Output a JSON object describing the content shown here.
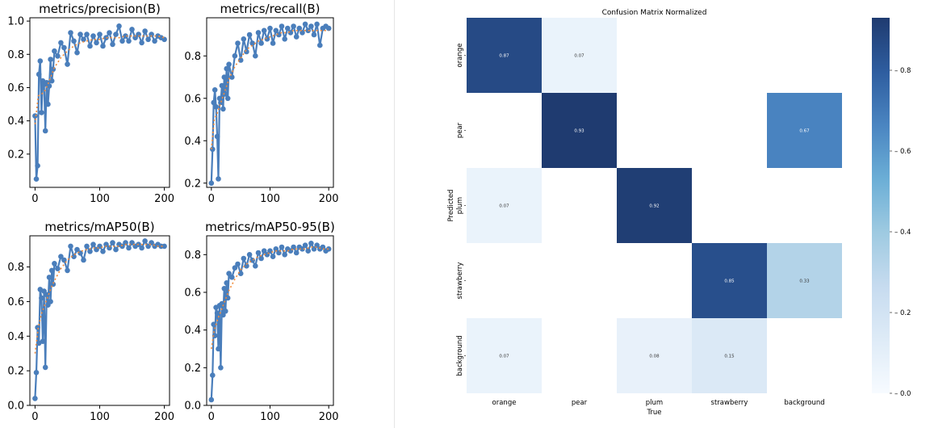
{
  "chart_data": [
    {
      "type": "line",
      "title": "metrics/precision(B)",
      "xlabel": "",
      "ylabel": "",
      "xlim": [
        -8,
        208
      ],
      "ylim": [
        0.0,
        1.02
      ],
      "x_ticks": [
        0,
        100,
        200
      ],
      "y_ticks": [
        0.2,
        0.4,
        0.6,
        0.8,
        1.0
      ],
      "y_tick_labels": [
        "0.2",
        "0.4",
        "0.6",
        "0.8",
        "1.0"
      ],
      "grid": false,
      "series": [
        {
          "role": "raw",
          "color": "#4a7ebb",
          "x": [
            0,
            2,
            4,
            6,
            8,
            10,
            12,
            14,
            16,
            18,
            20,
            22,
            24,
            26,
            28,
            30,
            35,
            40,
            45,
            50,
            55,
            60,
            65,
            70,
            75,
            80,
            85,
            90,
            95,
            100,
            105,
            110,
            115,
            120,
            125,
            130,
            135,
            140,
            145,
            150,
            155,
            160,
            165,
            170,
            175,
            180,
            185,
            190,
            195,
            200
          ],
          "y": [
            0.43,
            0.05,
            0.13,
            0.68,
            0.76,
            0.45,
            0.64,
            0.62,
            0.34,
            0.63,
            0.5,
            0.61,
            0.77,
            0.64,
            0.71,
            0.82,
            0.79,
            0.87,
            0.84,
            0.74,
            0.93,
            0.88,
            0.81,
            0.92,
            0.89,
            0.92,
            0.85,
            0.91,
            0.87,
            0.92,
            0.85,
            0.9,
            0.93,
            0.86,
            0.92,
            0.97,
            0.88,
            0.91,
            0.88,
            0.95,
            0.9,
            0.92,
            0.87,
            0.94,
            0.89,
            0.92,
            0.88,
            0.91,
            0.9,
            0.89
          ]
        },
        {
          "role": "smooth",
          "color": "#f08a3a",
          "x": [
            0,
            5,
            10,
            15,
            20,
            25,
            30,
            40,
            50,
            60,
            70,
            80,
            90,
            100,
            110,
            120,
            130,
            140,
            150,
            160,
            170,
            180,
            190,
            200
          ],
          "y": [
            0.38,
            0.55,
            0.56,
            0.58,
            0.62,
            0.67,
            0.72,
            0.78,
            0.82,
            0.85,
            0.87,
            0.88,
            0.89,
            0.89,
            0.9,
            0.9,
            0.9,
            0.91,
            0.91,
            0.91,
            0.91,
            0.91,
            0.91,
            0.9
          ]
        }
      ]
    },
    {
      "type": "line",
      "title": "metrics/recall(B)",
      "xlabel": "",
      "ylabel": "",
      "xlim": [
        -8,
        208
      ],
      "ylim": [
        0.18,
        0.98
      ],
      "x_ticks": [
        0,
        100,
        200
      ],
      "y_ticks": [
        0.2,
        0.4,
        0.6,
        0.8
      ],
      "y_tick_labels": [
        "0.2",
        "0.4",
        "0.6",
        "0.8"
      ],
      "grid": false,
      "series": [
        {
          "role": "raw",
          "color": "#4a7ebb",
          "x": [
            0,
            2,
            4,
            6,
            8,
            10,
            12,
            14,
            16,
            18,
            20,
            22,
            24,
            26,
            28,
            30,
            35,
            40,
            45,
            50,
            55,
            60,
            65,
            70,
            75,
            80,
            85,
            90,
            95,
            100,
            105,
            110,
            115,
            120,
            125,
            130,
            135,
            140,
            145,
            150,
            155,
            160,
            165,
            170,
            175,
            180,
            185,
            190,
            195,
            200
          ],
          "y": [
            0.2,
            0.36,
            0.58,
            0.64,
            0.56,
            0.42,
            0.22,
            0.6,
            0.58,
            0.66,
            0.55,
            0.7,
            0.62,
            0.74,
            0.6,
            0.76,
            0.7,
            0.8,
            0.86,
            0.78,
            0.88,
            0.82,
            0.9,
            0.86,
            0.8,
            0.91,
            0.86,
            0.92,
            0.88,
            0.93,
            0.86,
            0.92,
            0.9,
            0.94,
            0.88,
            0.93,
            0.91,
            0.94,
            0.89,
            0.93,
            0.91,
            0.95,
            0.92,
            0.94,
            0.9,
            0.95,
            0.85,
            0.93,
            0.94,
            0.93
          ]
        },
        {
          "role": "smooth",
          "color": "#f08a3a",
          "x": [
            0,
            5,
            10,
            15,
            20,
            25,
            30,
            40,
            50,
            60,
            70,
            80,
            90,
            100,
            110,
            120,
            130,
            140,
            150,
            160,
            170,
            180,
            190,
            200
          ],
          "y": [
            0.36,
            0.5,
            0.53,
            0.57,
            0.61,
            0.65,
            0.69,
            0.75,
            0.79,
            0.83,
            0.85,
            0.87,
            0.88,
            0.89,
            0.9,
            0.91,
            0.91,
            0.92,
            0.92,
            0.92,
            0.92,
            0.92,
            0.92,
            0.92
          ]
        }
      ]
    },
    {
      "type": "line",
      "title": "metrics/mAP50(B)",
      "xlabel": "",
      "ylabel": "",
      "xlim": [
        -8,
        208
      ],
      "ylim": [
        0.0,
        0.98
      ],
      "x_ticks": [
        0,
        100,
        200
      ],
      "y_ticks": [
        0.0,
        0.2,
        0.4,
        0.6,
        0.8
      ],
      "y_tick_labels": [
        "0.0",
        "0.2",
        "0.4",
        "0.6",
        "0.8"
      ],
      "grid": false,
      "series": [
        {
          "role": "raw",
          "color": "#4a7ebb",
          "x": [
            0,
            2,
            4,
            6,
            8,
            10,
            12,
            14,
            16,
            18,
            20,
            22,
            24,
            26,
            28,
            30,
            35,
            40,
            45,
            50,
            55,
            60,
            65,
            70,
            75,
            80,
            85,
            90,
            95,
            100,
            105,
            110,
            115,
            120,
            125,
            130,
            135,
            140,
            145,
            150,
            155,
            160,
            165,
            170,
            175,
            180,
            185,
            190,
            195,
            200
          ],
          "y": [
            0.04,
            0.19,
            0.45,
            0.36,
            0.67,
            0.62,
            0.37,
            0.66,
            0.22,
            0.64,
            0.58,
            0.74,
            0.6,
            0.78,
            0.7,
            0.82,
            0.79,
            0.86,
            0.84,
            0.78,
            0.92,
            0.86,
            0.9,
            0.88,
            0.84,
            0.92,
            0.89,
            0.93,
            0.9,
            0.92,
            0.89,
            0.93,
            0.91,
            0.94,
            0.9,
            0.93,
            0.92,
            0.94,
            0.91,
            0.94,
            0.92,
            0.93,
            0.91,
            0.95,
            0.92,
            0.94,
            0.92,
            0.93,
            0.92,
            0.92
          ]
        },
        {
          "role": "smooth",
          "color": "#f08a3a",
          "x": [
            0,
            5,
            10,
            15,
            20,
            25,
            30,
            40,
            50,
            60,
            70,
            80,
            90,
            100,
            110,
            120,
            130,
            140,
            150,
            160,
            170,
            180,
            190,
            200
          ],
          "y": [
            0.3,
            0.45,
            0.53,
            0.58,
            0.63,
            0.68,
            0.72,
            0.79,
            0.84,
            0.87,
            0.89,
            0.9,
            0.91,
            0.91,
            0.92,
            0.92,
            0.92,
            0.93,
            0.93,
            0.93,
            0.93,
            0.93,
            0.92,
            0.92
          ]
        }
      ]
    },
    {
      "type": "line",
      "title": "metrics/mAP50-95(B)",
      "xlabel": "",
      "ylabel": "",
      "xlim": [
        -8,
        208
      ],
      "ylim": [
        0.0,
        0.9
      ],
      "x_ticks": [
        0,
        100,
        200
      ],
      "y_ticks": [
        0.0,
        0.2,
        0.4,
        0.6,
        0.8
      ],
      "y_tick_labels": [
        "0.0",
        "0.2",
        "0.4",
        "0.6",
        "0.8"
      ],
      "grid": false,
      "series": [
        {
          "role": "raw",
          "color": "#4a7ebb",
          "x": [
            0,
            2,
            4,
            6,
            8,
            10,
            12,
            14,
            16,
            18,
            20,
            22,
            24,
            26,
            28,
            30,
            35,
            40,
            45,
            50,
            55,
            60,
            65,
            70,
            75,
            80,
            85,
            90,
            95,
            100,
            105,
            110,
            115,
            120,
            125,
            130,
            135,
            140,
            145,
            150,
            155,
            160,
            165,
            170,
            175,
            180,
            185,
            190,
            195,
            200
          ],
          "y": [
            0.03,
            0.16,
            0.43,
            0.37,
            0.52,
            0.49,
            0.3,
            0.53,
            0.2,
            0.54,
            0.48,
            0.62,
            0.5,
            0.65,
            0.57,
            0.7,
            0.68,
            0.73,
            0.75,
            0.7,
            0.78,
            0.74,
            0.8,
            0.77,
            0.74,
            0.81,
            0.78,
            0.82,
            0.8,
            0.82,
            0.79,
            0.83,
            0.81,
            0.84,
            0.8,
            0.83,
            0.82,
            0.84,
            0.81,
            0.84,
            0.83,
            0.85,
            0.82,
            0.86,
            0.83,
            0.85,
            0.83,
            0.84,
            0.82,
            0.83
          ]
        },
        {
          "role": "smooth",
          "color": "#f08a3a",
          "x": [
            0,
            5,
            10,
            15,
            20,
            25,
            30,
            40,
            50,
            60,
            70,
            80,
            90,
            100,
            110,
            120,
            130,
            140,
            150,
            160,
            170,
            180,
            190,
            200
          ],
          "y": [
            0.3,
            0.4,
            0.45,
            0.49,
            0.53,
            0.57,
            0.61,
            0.67,
            0.72,
            0.75,
            0.77,
            0.79,
            0.8,
            0.81,
            0.82,
            0.82,
            0.82,
            0.83,
            0.83,
            0.83,
            0.84,
            0.84,
            0.83,
            0.83
          ]
        }
      ]
    },
    {
      "type": "heatmap",
      "title": "Confusion Matrix Normalized",
      "xlabel": "True",
      "ylabel": "Predicted",
      "x_categories": [
        "orange",
        "pear",
        "plum",
        "strawberry",
        "background"
      ],
      "y_categories": [
        "orange",
        "pear",
        "plum",
        "strawberry",
        "background"
      ],
      "values": [
        [
          0.87,
          0.07,
          null,
          null,
          null
        ],
        [
          null,
          0.93,
          null,
          null,
          0.67
        ],
        [
          0.07,
          null,
          0.92,
          null,
          null
        ],
        [
          null,
          null,
          null,
          0.85,
          0.33
        ],
        [
          0.07,
          null,
          0.08,
          0.15,
          null
        ]
      ],
      "value_labels": [
        [
          "0.87",
          "0.07",
          "",
          "",
          ""
        ],
        [
          "",
          "0.93",
          "",
          "",
          "0.67"
        ],
        [
          "0.07",
          "",
          "0.92",
          "",
          ""
        ],
        [
          "",
          "",
          "",
          "0.85",
          "0.33"
        ],
        [
          "0.07",
          "",
          "0.08",
          "0.15",
          ""
        ]
      ],
      "colorscale": [
        "#f7fbff",
        "#deebf7",
        "#c6dbef",
        "#9ecae1",
        "#6baed6",
        "#4a85c1",
        "#2e5d9f",
        "#1f3b70"
      ],
      "colorbar_range": [
        0.0,
        0.93
      ],
      "colorbar_ticks": [
        0.0,
        0.2,
        0.4,
        0.6,
        0.8
      ],
      "colorbar_tick_labels": [
        "0.0",
        "0.2",
        "0.4",
        "0.6",
        "0.8"
      ]
    }
  ]
}
